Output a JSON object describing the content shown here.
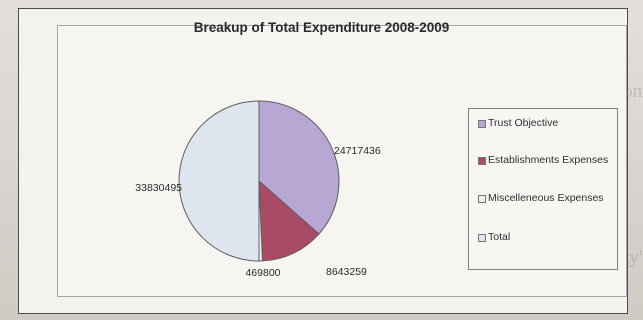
{
  "chart_data": {
    "type": "pie",
    "title": "Breakup of Total Expenditure 2008-2009",
    "categories": [
      "Trust Objective",
      "Establishments Expenses",
      "Miscelleneous Expenses",
      "Total"
    ],
    "values": [
      24717436,
      8643259,
      469800,
      33830495
    ],
    "data_labels": [
      "24717436",
      "8643259",
      "469800",
      "33830495"
    ],
    "colors": [
      "#b8a6d3",
      "#a94a66",
      "#f0efe7",
      "#dfe5ef"
    ],
    "legend": "right",
    "grid": false,
    "xlabel": "",
    "ylabel": ""
  }
}
